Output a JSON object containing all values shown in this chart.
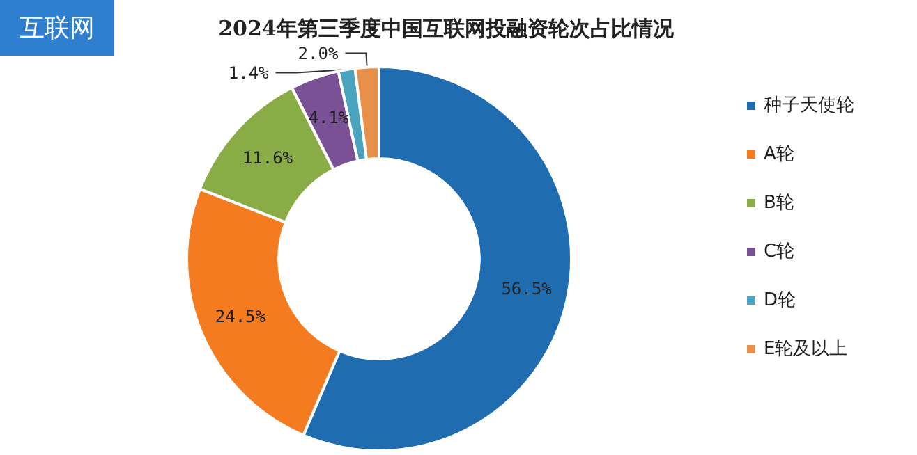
{
  "chart_data": {
    "type": "donut",
    "title": "2024年第三季度中国互联网投融资轮次占比情况",
    "categories": [
      "种子天使轮",
      "A轮",
      "B轮",
      "C轮",
      "D轮",
      "E轮及以上"
    ],
    "values": [
      56.5,
      24.5,
      11.6,
      4.1,
      1.4,
      2.0
    ],
    "colors": [
      "#1f6cb0",
      "#f47b20",
      "#8aac46",
      "#7a5195",
      "#4aa4c0",
      "#e8904a"
    ],
    "value_labels": [
      "56.5%",
      "24.5%",
      "11.6%",
      "4.1%",
      "1.4%",
      "2.0%"
    ],
    "legend": "right",
    "annotations": [
      "互联网"
    ]
  }
}
